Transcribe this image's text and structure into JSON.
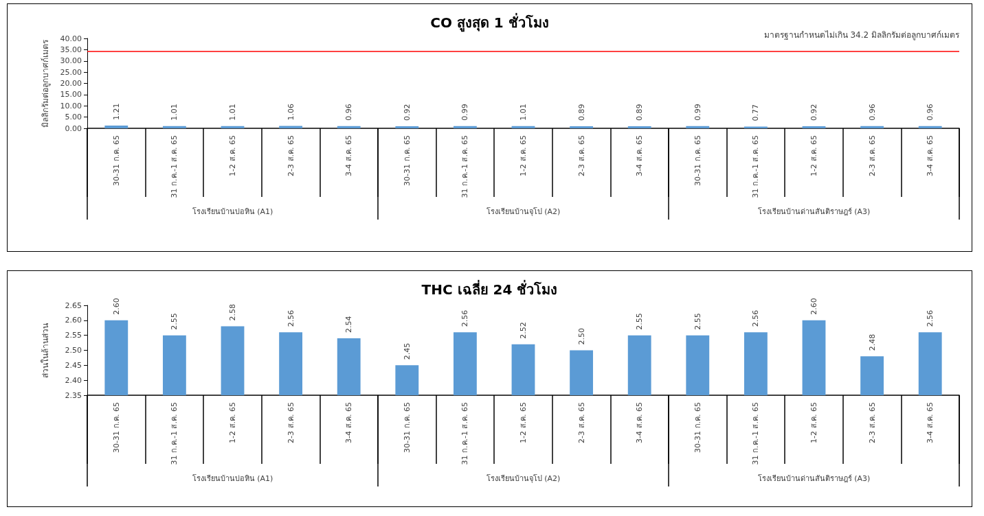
{
  "chart_data": [
    {
      "type": "bar",
      "title": "CO สูงสุด 1 ชั่วโมง",
      "ylabel": "มิลลิกรัมต่อลูกบาศก์เมตร",
      "categories": [
        "30-31 ก.ค. 65",
        "31 ก.ค.-1 ส.ค. 65",
        "1-2 ส.ค. 65",
        "2-3 ส.ค. 65",
        "3-4 ส.ค. 65",
        "30-31 ก.ค. 65",
        "31 ก.ค.-1 ส.ค. 65",
        "1-2 ส.ค. 65",
        "2-3 ส.ค. 65",
        "3-4 ส.ค. 65",
        "30-31 ก.ค. 65",
        "31 ก.ค.-1 ส.ค. 65",
        "1-2 ส.ค. 65",
        "2-3 ส.ค. 65",
        "3-4 ส.ค. 65"
      ],
      "values": [
        1.21,
        1.01,
        1.01,
        1.06,
        0.96,
        0.92,
        0.99,
        1.01,
        0.89,
        0.89,
        0.99,
        0.77,
        0.92,
        0.96,
        0.96
      ],
      "color": "#5b9bd5",
      "value_labels": [
        "1.21",
        "1.01",
        "1.01",
        "1.06",
        "0.96",
        "0.92",
        "0.99",
        "1.01",
        "0.89",
        "0.89",
        "0.99",
        "0.77",
        "0.92",
        "0.96",
        "0.96"
      ],
      "grid": false,
      "ylim": [
        0,
        40
      ],
      "yticks": [
        {
          "value": 0,
          "label": "0.00"
        },
        {
          "value": 5,
          "label": "5.00"
        },
        {
          "value": 10,
          "label": "10.00"
        },
        {
          "value": 15,
          "label": "15.00"
        },
        {
          "value": 20,
          "label": "20.00"
        },
        {
          "value": 25,
          "label": "25.00"
        },
        {
          "value": 30,
          "label": "30.00"
        },
        {
          "value": 35,
          "label": "35.00"
        },
        {
          "value": 40,
          "label": "40.00"
        }
      ],
      "ref_lines": [
        {
          "axis": "y",
          "value": 34.2,
          "label": "มาตรฐานกำหนดไม่เกิน 34.2 มิลลิกรัมต่อลูกบาศก์เมตร",
          "color": "#ff0000"
        }
      ],
      "annotations": [
        "โรงเรียนบ้านบ่อหิน (A1)",
        "โรงเรียนบ้านจุโป (A2)",
        "โรงเรียนบ้านด่านสันติราษฎร์ (A3)"
      ]
    },
    {
      "type": "bar",
      "title": "THC เฉลี่ย 24 ชั่วโมง",
      "ylabel": "ส่วนในล้านส่วน",
      "categories": [
        "30-31 ก.ค. 65",
        "31 ก.ค.-1 ส.ค. 65",
        "1-2 ส.ค. 65",
        "2-3 ส.ค. 65",
        "3-4 ส.ค. 65",
        "30-31 ก.ค. 65",
        "31 ก.ค.-1 ส.ค. 65",
        "1-2 ส.ค. 65",
        "2-3 ส.ค. 65",
        "3-4 ส.ค. 65",
        "30-31 ก.ค. 65",
        "31 ก.ค.-1 ส.ค. 65",
        "1-2 ส.ค. 65",
        "2-3 ส.ค. 65",
        "3-4 ส.ค. 65"
      ],
      "values": [
        2.6,
        2.55,
        2.58,
        2.56,
        2.54,
        2.45,
        2.56,
        2.52,
        2.5,
        2.55,
        2.55,
        2.56,
        2.6,
        2.48,
        2.56
      ],
      "color": "#5b9bd5",
      "value_labels": [
        "2.60",
        "2.55",
        "2.58",
        "2.56",
        "2.54",
        "2.45",
        "2.56",
        "2.52",
        "2.50",
        "2.55",
        "2.55",
        "2.56",
        "2.60",
        "2.48",
        "2.56"
      ],
      "grid": false,
      "ylim": [
        2.35,
        2.65
      ],
      "yticks": [
        {
          "value": 2.35,
          "label": "2.35"
        },
        {
          "value": 2.4,
          "label": "2.40"
        },
        {
          "value": 2.45,
          "label": "2.45"
        },
        {
          "value": 2.5,
          "label": "2.50"
        },
        {
          "value": 2.55,
          "label": "2.55"
        },
        {
          "value": 2.6,
          "label": "2.60"
        },
        {
          "value": 2.65,
          "label": "2.65"
        }
      ],
      "annotations": [
        "โรงเรียนบ้านบ่อหิน (A1)",
        "โรงเรียนบ้านจุโป (A2)",
        "โรงเรียนบ้านด่านสันติราษฎร์ (A3)"
      ]
    }
  ]
}
